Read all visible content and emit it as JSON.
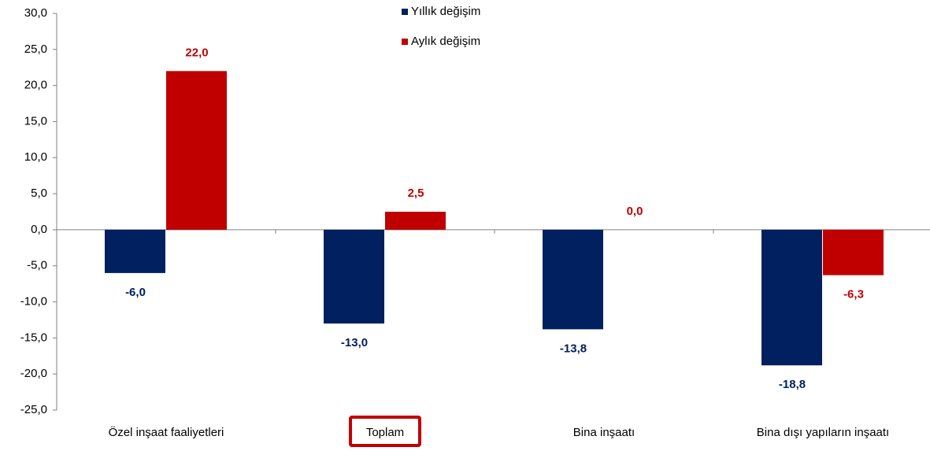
{
  "chart_data": {
    "type": "bar",
    "categories": [
      "Özel inşaat faaliyetleri",
      "Toplam",
      "Bina inşaatı",
      "Bina dışı yapıların inşaatı"
    ],
    "series": [
      {
        "name": "Yıllık değişim",
        "color": "#002060",
        "values": [
          -6.0,
          -13.0,
          -13.8,
          -18.8
        ],
        "value_labels": [
          "-6,0",
          "-13,0",
          "-13,8",
          "-18,8"
        ]
      },
      {
        "name": "Aylık değişim",
        "color": "#c00000",
        "values": [
          22.0,
          2.5,
          0.0,
          -6.3
        ],
        "value_labels": [
          "22,0",
          "2,5",
          "0,0",
          "-6,3"
        ]
      }
    ],
    "ylim": [
      -25,
      30
    ],
    "yticks": [
      {
        "value": -25,
        "label": "-25,0"
      },
      {
        "value": -20,
        "label": "-20,0"
      },
      {
        "value": -15,
        "label": "-15,0"
      },
      {
        "value": -10,
        "label": "-10,0"
      },
      {
        "value": -5,
        "label": "-5,0"
      },
      {
        "value": 0,
        "label": "0,0"
      },
      {
        "value": 5,
        "label": "5,0"
      },
      {
        "value": 10,
        "label": "10,0"
      },
      {
        "value": 15,
        "label": "15,0"
      },
      {
        "value": 20,
        "label": "20,0"
      },
      {
        "value": 25,
        "label": "25,0"
      },
      {
        "value": 30,
        "label": "30,0"
      }
    ],
    "grid": false
  }
}
